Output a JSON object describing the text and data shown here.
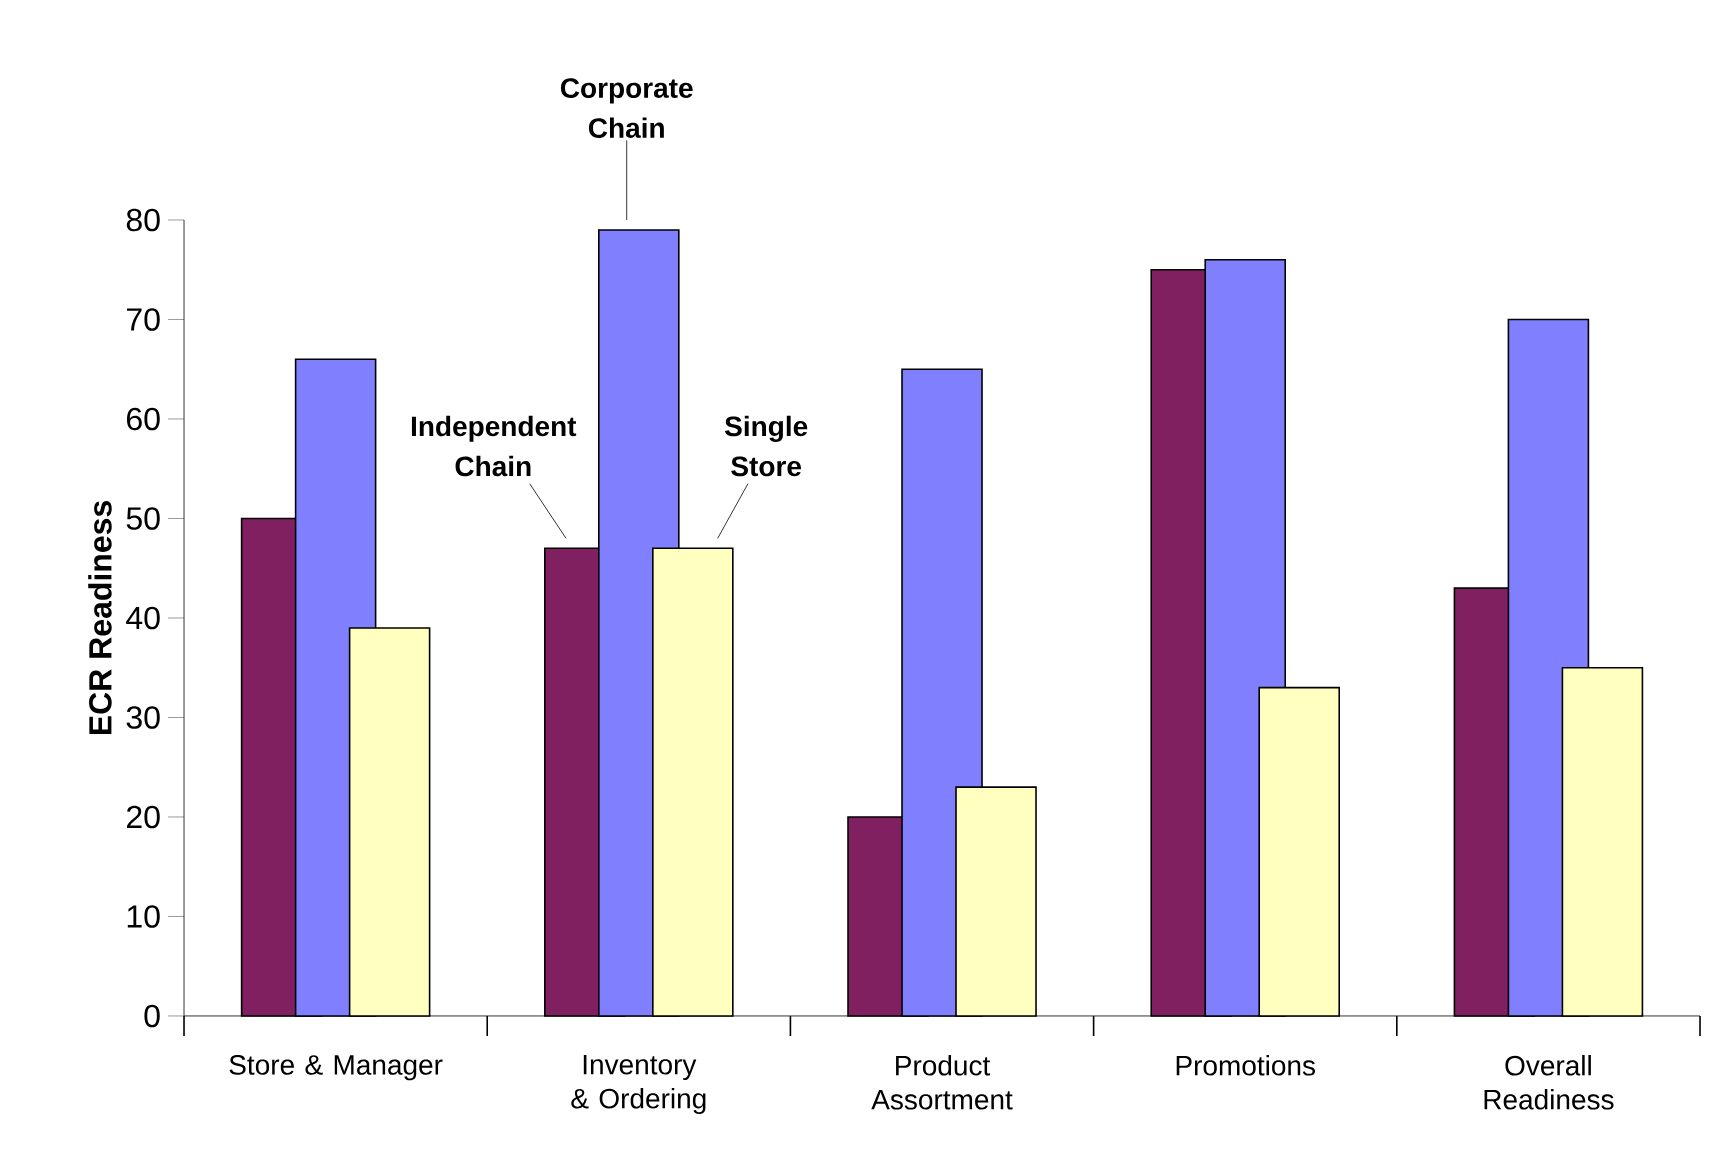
{
  "chart_data": {
    "type": "bar",
    "ylabel": "ECR Readiness",
    "categories": [
      "Store & Manager",
      "Inventory & Ordering",
      "Product Assortment",
      "Promotions",
      "Overall Readiness"
    ],
    "series": [
      {
        "name": "Independent Chain",
        "color": "#802060",
        "values": [
          50,
          47,
          20,
          75,
          43
        ]
      },
      {
        "name": "Corporate Chain",
        "color": "#8080ff",
        "values": [
          66,
          79,
          65,
          76,
          70
        ]
      },
      {
        "name": "Single Store",
        "color": "#ffffc0",
        "values": [
          39,
          47,
          23,
          33,
          35
        ]
      }
    ],
    "ylim": [
      0,
      80
    ],
    "yticks": [
      0,
      10,
      20,
      30,
      40,
      50,
      60,
      70,
      80
    ]
  }
}
